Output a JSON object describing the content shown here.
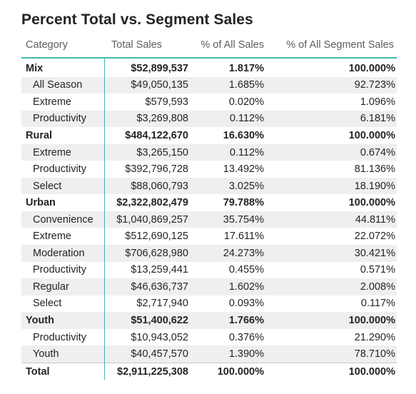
{
  "title": "Percent Total vs. Segment Sales",
  "columns": [
    "Category",
    "Total Sales",
    "% of All Sales",
    "% of All Segment Sales"
  ],
  "rows": [
    {
      "level": "group",
      "category": "Mix",
      "total_sales": "$52,899,537",
      "pct_all": "1.817%",
      "pct_segment": "100.000%"
    },
    {
      "level": "child",
      "category": "All Season",
      "total_sales": "$49,050,135",
      "pct_all": "1.685%",
      "pct_segment": "92.723%"
    },
    {
      "level": "child",
      "category": "Extreme",
      "total_sales": "$579,593",
      "pct_all": "0.020%",
      "pct_segment": "1.096%"
    },
    {
      "level": "child",
      "category": "Productivity",
      "total_sales": "$3,269,808",
      "pct_all": "0.112%",
      "pct_segment": "6.181%"
    },
    {
      "level": "group",
      "category": "Rural",
      "total_sales": "$484,122,670",
      "pct_all": "16.630%",
      "pct_segment": "100.000%"
    },
    {
      "level": "child",
      "category": "Extreme",
      "total_sales": "$3,265,150",
      "pct_all": "0.112%",
      "pct_segment": "0.674%"
    },
    {
      "level": "child",
      "category": "Productivity",
      "total_sales": "$392,796,728",
      "pct_all": "13.492%",
      "pct_segment": "81.136%"
    },
    {
      "level": "child",
      "category": "Select",
      "total_sales": "$88,060,793",
      "pct_all": "3.025%",
      "pct_segment": "18.190%"
    },
    {
      "level": "group",
      "category": "Urban",
      "total_sales": "$2,322,802,479",
      "pct_all": "79.788%",
      "pct_segment": "100.000%"
    },
    {
      "level": "child",
      "category": "Convenience",
      "total_sales": "$1,040,869,257",
      "pct_all": "35.754%",
      "pct_segment": "44.811%"
    },
    {
      "level": "child",
      "category": "Extreme",
      "total_sales": "$512,690,125",
      "pct_all": "17.611%",
      "pct_segment": "22.072%"
    },
    {
      "level": "child",
      "category": "Moderation",
      "total_sales": "$706,628,980",
      "pct_all": "24.273%",
      "pct_segment": "30.421%"
    },
    {
      "level": "child",
      "category": "Productivity",
      "total_sales": "$13,259,441",
      "pct_all": "0.455%",
      "pct_segment": "0.571%"
    },
    {
      "level": "child",
      "category": "Regular",
      "total_sales": "$46,636,737",
      "pct_all": "1.602%",
      "pct_segment": "2.008%"
    },
    {
      "level": "child",
      "category": "Select",
      "total_sales": "$2,717,940",
      "pct_all": "0.093%",
      "pct_segment": "0.117%"
    },
    {
      "level": "group",
      "category": "Youth",
      "total_sales": "$51,400,622",
      "pct_all": "1.766%",
      "pct_segment": "100.000%"
    },
    {
      "level": "child",
      "category": "Productivity",
      "total_sales": "$10,943,052",
      "pct_all": "0.376%",
      "pct_segment": "21.290%"
    },
    {
      "level": "child",
      "category": "Youth",
      "total_sales": "$40,457,570",
      "pct_all": "1.390%",
      "pct_segment": "78.710%"
    }
  ],
  "total": {
    "category": "Total",
    "total_sales": "$2,911,225,308",
    "pct_all": "100.000%",
    "pct_segment": "100.000%"
  },
  "colors": {
    "accent_border": "#41b7b0",
    "row_shade": "#efefef",
    "header_text": "#605e5c",
    "body_text": "#252423"
  }
}
